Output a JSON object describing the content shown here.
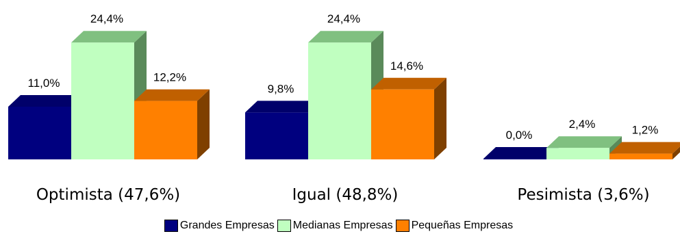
{
  "chart_data": {
    "type": "bar",
    "categories": [
      "Optimista (47,6%)",
      "Igual (48,8%)",
      "Pesimista (3,6%)"
    ],
    "series": [
      {
        "name": "Grandes Empresas",
        "values": [
          11.0,
          9.8,
          0.0
        ],
        "labels": [
          "11,0%",
          "9,8%",
          "0,0%"
        ],
        "color": "#00007f"
      },
      {
        "name": "Medianas Empresas",
        "values": [
          24.4,
          24.4,
          2.4
        ],
        "labels": [
          "24,4%",
          "24,4%",
          "2,4%"
        ],
        "color": "#c0ffc0"
      },
      {
        "name": "Pequeñas Empresas",
        "values": [
          12.2,
          14.6,
          1.2
        ],
        "labels": [
          "12,2%",
          "14,6%",
          "1,2%"
        ],
        "color": "#ff8000"
      }
    ],
    "ylim": [
      0,
      25
    ],
    "grid": false,
    "legend_position": "bottom",
    "style": "3d-bar"
  }
}
